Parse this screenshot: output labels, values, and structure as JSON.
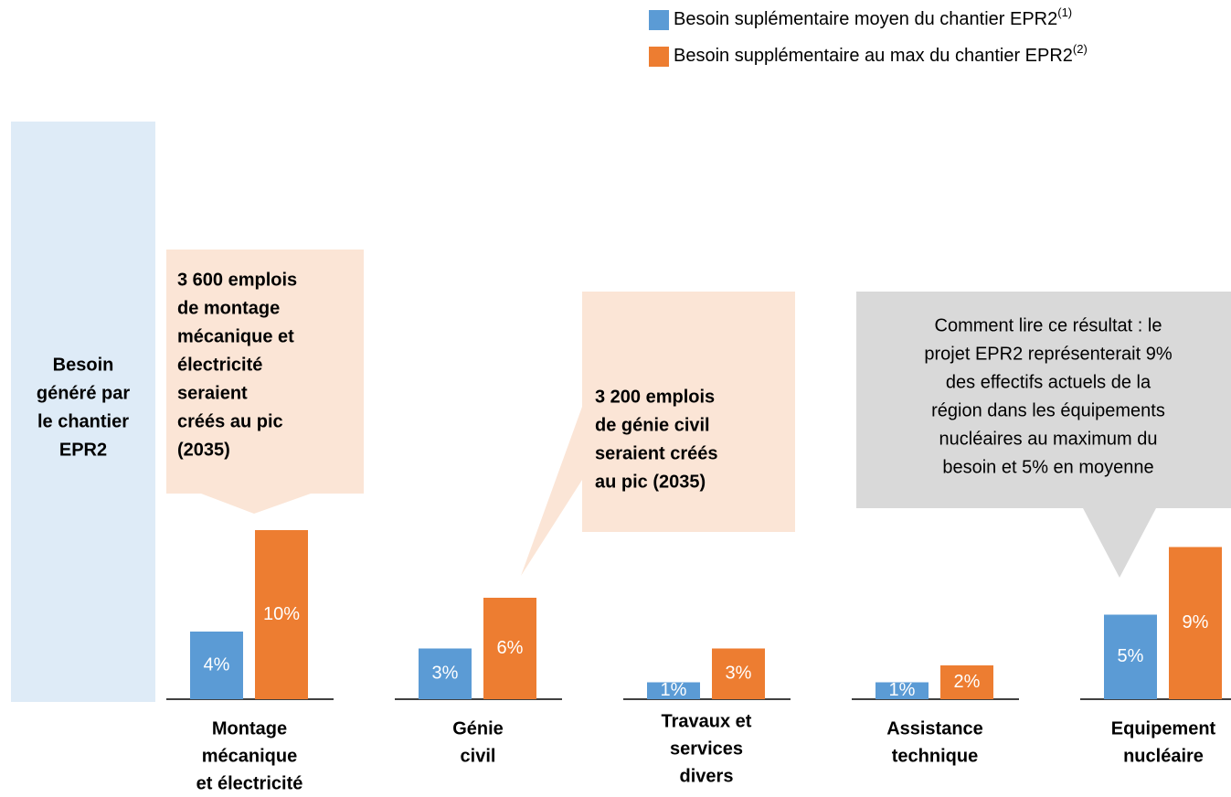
{
  "chart_data": {
    "type": "bar",
    "categories": [
      [
        "Montage",
        "mécanique",
        "et électricité"
      ],
      [
        "Génie",
        "civil"
      ],
      [
        "Travaux et",
        "services",
        "divers"
      ],
      [
        "Assistance",
        "technique"
      ],
      [
        "Equipement",
        "nucléaire"
      ]
    ],
    "series": [
      {
        "name": "Besoin suplémentaire moyen du chantier EPR2",
        "footnote": "(1)",
        "color": "#5b9bd5",
        "values": [
          4,
          3,
          1,
          1,
          5
        ],
        "value_labels": [
          "4%",
          "3%",
          "1%",
          "1%",
          "5%"
        ]
      },
      {
        "name": "Besoin supplémentaire au max du chantier EPR2",
        "footnote": "(2)",
        "color": "#ed7d31",
        "values": [
          10,
          6,
          3,
          2,
          9
        ],
        "value_labels": [
          "10%",
          "6%",
          "3%",
          "2%",
          "9%"
        ]
      }
    ],
    "side_label": [
      "Besoin",
      "généré par",
      "le chantier",
      "EPR2"
    ],
    "annotations": [
      [
        "3 600 emplois",
        "de montage",
        "mécanique et",
        "électricité",
        "seraient",
        "créés au pic",
        "(2035)"
      ],
      [
        "3 200 emplois",
        "de génie civil",
        "seraient créés",
        "au pic (2035)"
      ],
      [
        "Comment lire ce résultat : le",
        "projet EPR2 représenterait 9%",
        "des effectifs actuels de la",
        "région dans les équipements",
        "nucléaires au maximum du",
        "besoin et 5% en moyenne"
      ]
    ]
  }
}
